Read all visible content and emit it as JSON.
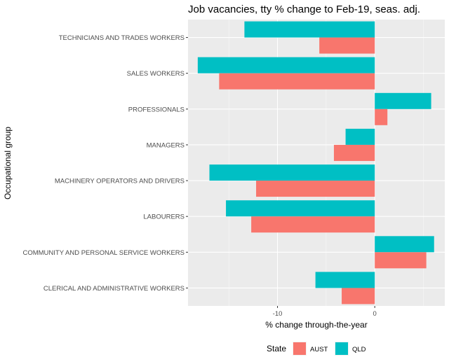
{
  "chart_data": {
    "type": "bar",
    "orientation": "horizontal",
    "title": "Job vacancies, tty % change to Feb-19, seas. adj.",
    "xlabel": "% change through-the-year",
    "ylabel": "Occupational group",
    "xlim": [
      -19.2,
      7.2
    ],
    "xticks": [
      -10,
      0
    ],
    "xtick_labels": [
      "-10",
      "0"
    ],
    "grid": true,
    "legend_position": "bottom",
    "legend_title": "State",
    "categories": [
      "TECHNICIANS AND TRADES WORKERS",
      "SALES WORKERS",
      "PROFESSIONALS",
      "MANAGERS",
      "MACHINERY OPERATORS AND DRIVERS",
      "LABOURERS",
      "COMMUNITY AND PERSONAL SERVICE WORKERS",
      "CLERICAL AND ADMINISTRATIVE WORKERS"
    ],
    "series": [
      {
        "name": "QLD",
        "color": "#00BFC4",
        "values": [
          -13.4,
          -18.2,
          5.8,
          -3.0,
          -17.0,
          -15.3,
          6.1,
          -6.1
        ]
      },
      {
        "name": "AUST",
        "color": "#F8766D",
        "values": [
          -5.7,
          -16.0,
          1.3,
          -4.2,
          -12.2,
          -12.7,
          5.3,
          -3.4
        ]
      }
    ],
    "legend_order": [
      "AUST",
      "QLD"
    ]
  }
}
